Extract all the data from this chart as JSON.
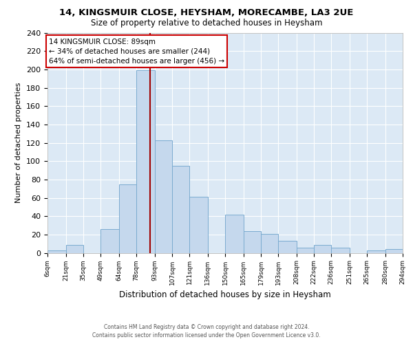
{
  "title1": "14, KINGSMUIR CLOSE, HEYSHAM, MORECAMBE, LA3 2UE",
  "title2": "Size of property relative to detached houses in Heysham",
  "xlabel": "Distribution of detached houses by size in Heysham",
  "ylabel": "Number of detached properties",
  "bar_color": "#c5d8ed",
  "bar_edge_color": "#7aabcf",
  "background_color": "#dce9f5",
  "grid_color": "white",
  "property_line_x": 89,
  "property_line_color": "#a00000",
  "annotation_title": "14 KINGSMUIR CLOSE: 89sqm",
  "annotation_line1": "← 34% of detached houses are smaller (244)",
  "annotation_line2": "64% of semi-detached houses are larger (456) →",
  "annotation_box_color": "white",
  "annotation_box_edge": "#cc0000",
  "bin_edges": [
    6,
    21,
    35,
    49,
    64,
    78,
    93,
    107,
    121,
    136,
    150,
    165,
    179,
    193,
    208,
    222,
    236,
    251,
    265,
    280,
    294
  ],
  "bin_counts": [
    3,
    9,
    0,
    26,
    75,
    199,
    123,
    95,
    61,
    0,
    42,
    24,
    21,
    13,
    6,
    9,
    6,
    0,
    3,
    4
  ],
  "ylim": [
    0,
    240
  ],
  "yticks": [
    0,
    20,
    40,
    60,
    80,
    100,
    120,
    140,
    160,
    180,
    200,
    220,
    240
  ],
  "footer1": "Contains HM Land Registry data © Crown copyright and database right 2024.",
  "footer2": "Contains public sector information licensed under the Open Government Licence v3.0."
}
